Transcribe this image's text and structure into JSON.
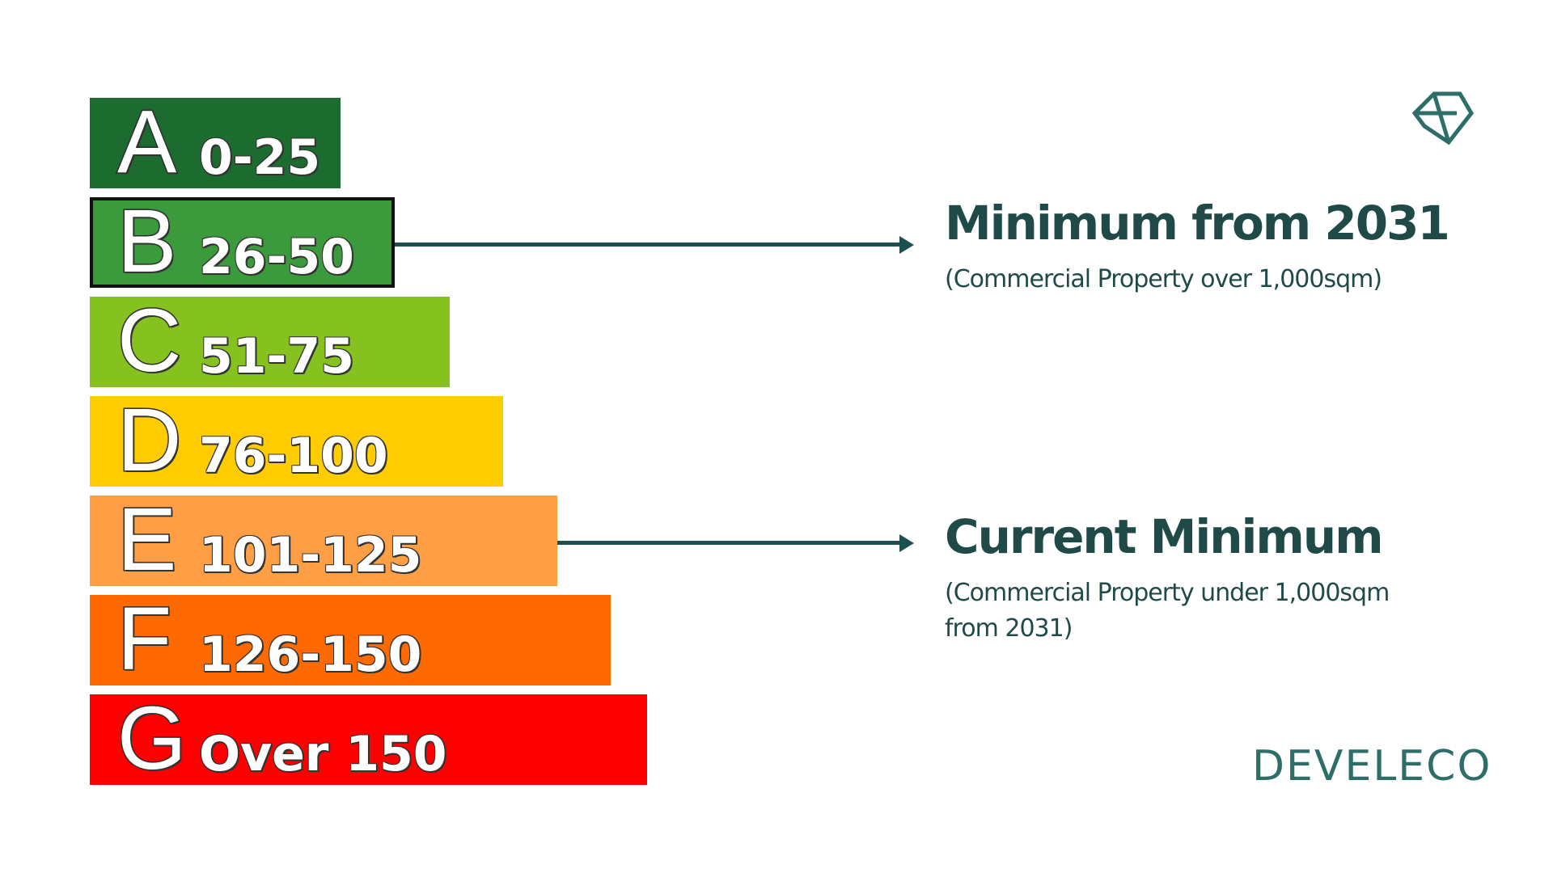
{
  "bands": [
    {
      "letter": "A",
      "range": "0-25",
      "color": "#1c6b2f"
    },
    {
      "letter": "B",
      "range": "26-50",
      "color": "#3a9a3c"
    },
    {
      "letter": "C",
      "range": "51-75",
      "color": "#86c21f"
    },
    {
      "letter": "D",
      "range": "76-100",
      "color": "#ffcc00"
    },
    {
      "letter": "E",
      "range": "101-125",
      "color": "#ff9f45"
    },
    {
      "letter": "F",
      "range": "126-150",
      "color": "#ff6a00"
    },
    {
      "letter": "G",
      "range": "Over 150",
      "color": "#ff0000"
    }
  ],
  "callouts": {
    "future": {
      "title": "Minimum from 2031",
      "subtitle": "(Commercial Property over 1,000sqm)",
      "band": "B"
    },
    "current": {
      "title": "Current Minimum",
      "subtitle": "(Commercial Property under 1,000sqm from 2031)",
      "band": "E"
    }
  },
  "brand": {
    "name": "DEVELECO",
    "logo_icon": "diamond-logo-icon",
    "color": "#2e6e69"
  },
  "colors": {
    "accent": "#1f4a48",
    "arrow": "#1f5050"
  }
}
